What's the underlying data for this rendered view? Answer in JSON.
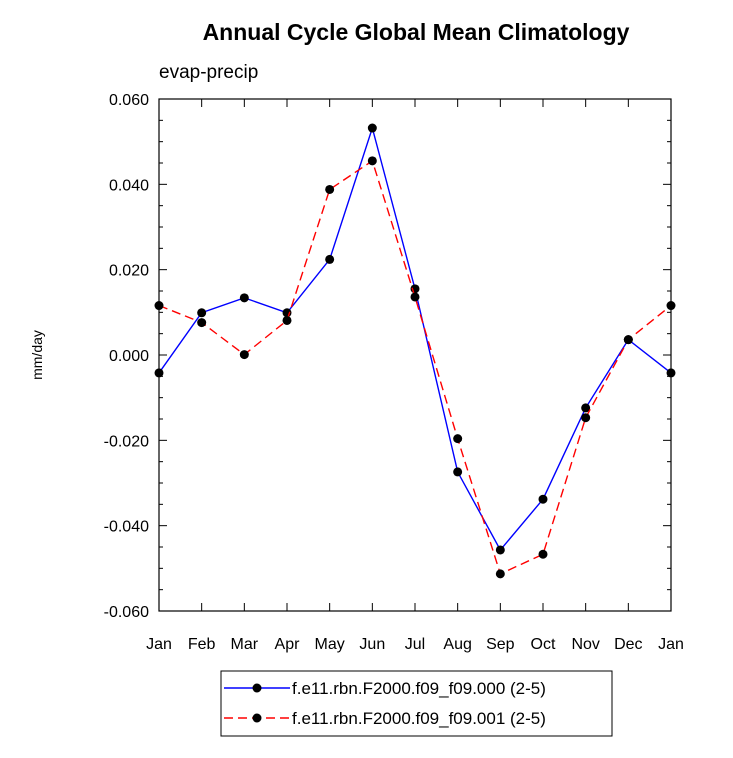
{
  "chart_data": {
    "type": "line",
    "title": "Annual Cycle Global Mean Climatology",
    "subtitle": "evap-precip",
    "xlabel": "",
    "ylabel": "mm/day",
    "categories": [
      "Jan",
      "Feb",
      "Mar",
      "Apr",
      "May",
      "Jun",
      "Jul",
      "Aug",
      "Sep",
      "Oct",
      "Nov",
      "Dec",
      "Jan"
    ],
    "ylim": [
      -0.06,
      0.06
    ],
    "yticks": [
      "-0.060",
      "-0.040",
      "-0.020",
      "0.000",
      "0.020",
      "0.040",
      "0.060"
    ],
    "yticks_values": [
      -0.06,
      -0.04,
      -0.02,
      0.0,
      0.02,
      0.04,
      0.06
    ],
    "grid": false,
    "legend_position": "bottom",
    "series": [
      {
        "name": "f.e11.rbn.F2000.f09_f09.000 (2-5)",
        "color": "#0000ff",
        "dash": "solid",
        "values": [
          -0.0042,
          0.0099,
          0.0134,
          0.0099,
          0.0224,
          0.0532,
          0.0155,
          -0.0274,
          -0.0457,
          -0.0338,
          -0.0124,
          0.0036,
          -0.0042
        ]
      },
      {
        "name": "f.e11.rbn.F2000.f09_f09.001 (2-5)",
        "color": "#ff0000",
        "dash": "dashed",
        "values": [
          0.0116,
          0.0076,
          0.0001,
          0.0081,
          0.0388,
          0.0455,
          0.0136,
          -0.0196,
          -0.0513,
          -0.0467,
          -0.0147,
          0.0036,
          0.0116
        ]
      }
    ]
  }
}
